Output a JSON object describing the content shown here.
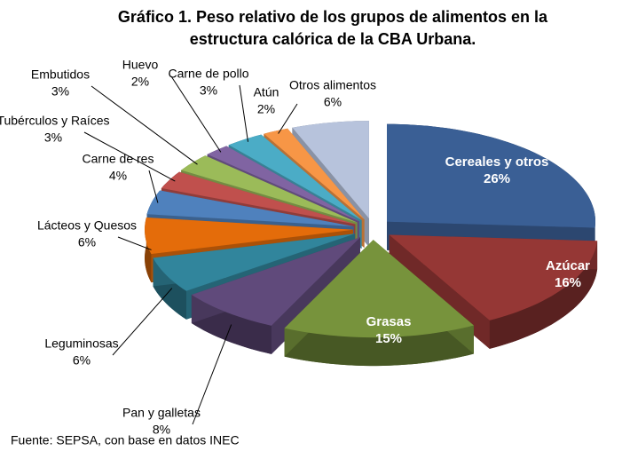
{
  "chart_data": {
    "type": "pie",
    "title": "Gráfico 1. Peso relativo de los grupos de alimentos en la",
    "title_line2": "estructura calórica de la CBA Urbana.",
    "source": "Fuente: SEPSA, con base en datos INEC",
    "categories": [
      "Cereales y otros",
      "Azúcar",
      "Grasas",
      "Pan y galletas",
      "Leguminosas",
      "Lácteos y Quesos",
      "Carne de res",
      "Tubérculos y Raíces",
      "Embutidos",
      "Huevo",
      "Carne de pollo",
      "Atún",
      "Otros alimentos"
    ],
    "values": [
      26,
      16,
      15,
      8,
      6,
      6,
      4,
      3,
      3,
      2,
      3,
      2,
      6
    ],
    "value_labels": [
      "26%",
      "16%",
      "15%",
      "8%",
      "6%",
      "6%",
      "4%",
      "3%",
      "3%",
      "2%",
      "3%",
      "2%",
      "6%"
    ],
    "colors": [
      "#3a5f95",
      "#953735",
      "#77933c",
      "#604a7b",
      "#31859c",
      "#e46c0a",
      "#4f81bd",
      "#c0504d",
      "#9bbb59",
      "#8064a2",
      "#4bacc6",
      "#f79646",
      "#b7c3dc"
    ]
  }
}
